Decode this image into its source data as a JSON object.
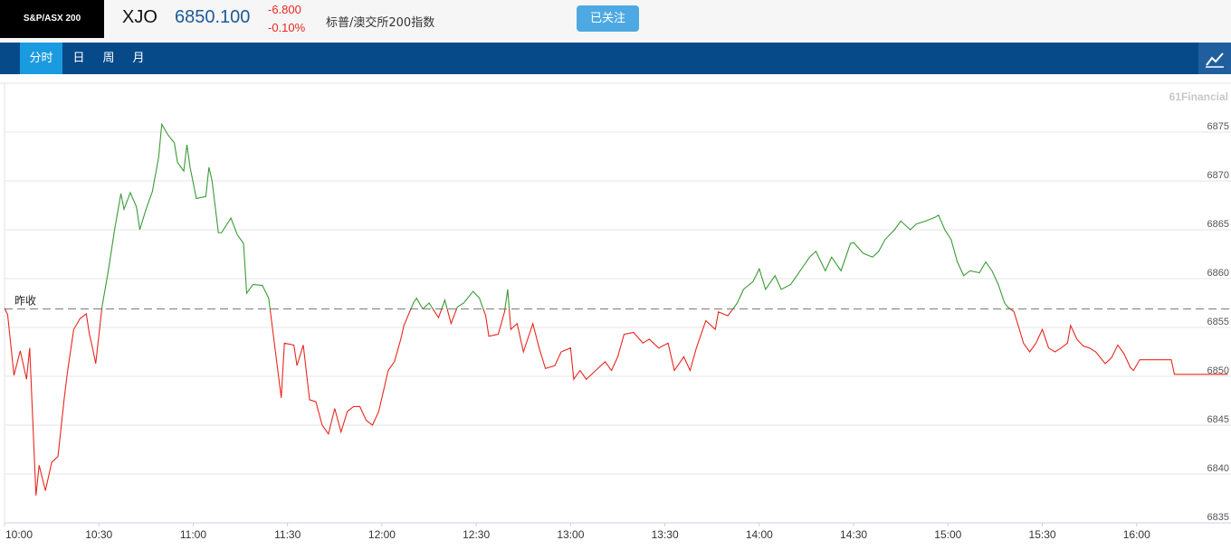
{
  "header": {
    "logo": "S&P/ASX 200",
    "symbol": "XJO",
    "price": "6850.100",
    "change": "-6.800",
    "change_percent": "-0.10%",
    "name": "标普/澳交所200指数",
    "button": "已关注"
  },
  "tabs": [
    "分时",
    "日",
    "周",
    "月"
  ],
  "active_tab": 0,
  "chart_data": {
    "type": "line",
    "watermark": "61Financial",
    "reference_line": {
      "label": "昨收",
      "value": 6856.9,
      "color": "#8c8c8c"
    },
    "color_above": "#3b9a36",
    "color_below": "#e8271f",
    "x": [
      "10:00",
      "10:01",
      "10:03",
      "10:05",
      "10:07",
      "10:08",
      "10:10",
      "10:11",
      "10:13",
      "10:15",
      "10:17",
      "10:19",
      "10:20",
      "10:22",
      "10:24",
      "10:26",
      "10:27",
      "10:28",
      "10:29",
      "10:31",
      "10:33",
      "10:35",
      "10:37",
      "10:38",
      "10:40",
      "10:42",
      "10:43",
      "10:45",
      "10:47",
      "10:49",
      "10:50",
      "10:52",
      "10:54",
      "10:55",
      "10:57",
      "10:58",
      "10:59",
      "11:01",
      "11:04",
      "11:05",
      "11:06",
      "11:08",
      "11:09",
      "11:12",
      "11:14",
      "11:16",
      "11:17",
      "11:19",
      "11:22",
      "11:24",
      "11:26",
      "11:28",
      "11:29",
      "11:32",
      "11:33",
      "11:35",
      "11:37",
      "11:39",
      "11:41",
      "11:43",
      "11:45",
      "11:47",
      "11:49",
      "11:51",
      "11:53",
      "11:55",
      "11:57",
      "11:59",
      "12:02",
      "12:04",
      "12:06",
      "12:07",
      "12:10",
      "12:11",
      "12:13",
      "12:15",
      "12:18",
      "12:20",
      "12:22",
      "12:24",
      "12:26",
      "12:29",
      "12:31",
      "12:33",
      "12:34",
      "12:37",
      "12:39",
      "12:40",
      "12:41",
      "12:43",
      "12:45",
      "12:48",
      "12:50",
      "12:52",
      "12:55",
      "12:57",
      "13:00",
      "13:01",
      "13:03",
      "13:05",
      "13:08",
      "13:11",
      "13:13",
      "13:15",
      "13:17",
      "13:20",
      "13:23",
      "13:25",
      "13:28",
      "13:31",
      "13:33",
      "13:36",
      "13:38",
      "13:40",
      "13:43",
      "13:46",
      "13:47",
      "13:50",
      "13:53",
      "13:55",
      "13:58",
      "14:00",
      "14:02",
      "14:05",
      "14:07",
      "14:10",
      "14:13",
      "14:16",
      "14:18",
      "14:21",
      "14:23",
      "14:26",
      "14:29",
      "14:30",
      "14:33",
      "14:36",
      "14:38",
      "14:40",
      "14:43",
      "14:45",
      "14:48",
      "14:50",
      "14:53",
      "14:56",
      "14:57",
      "14:59",
      "15:01",
      "15:03",
      "15:05",
      "15:07",
      "15:10",
      "15:12",
      "15:14",
      "15:16",
      "15:18",
      "15:19",
      "15:21",
      "15:23",
      "15:24",
      "15:26",
      "15:28",
      "15:30",
      "15:32",
      "15:34",
      "15:36",
      "15:38",
      "15:39",
      "15:41",
      "15:43",
      "15:45",
      "15:47",
      "15:50",
      "15:52",
      "15:54",
      "15:56",
      "15:58",
      "15:59",
      "16:01",
      "16:11",
      "16:12",
      "16:29"
    ],
    "values": [
      6857.0,
      6856.3,
      6850.1,
      6852.6,
      6849.7,
      6852.9,
      6837.8,
      6840.9,
      6838.3,
      6841.2,
      6841.8,
      6847.8,
      6850.4,
      6854.8,
      6855.9,
      6856.4,
      6854.3,
      6852.9,
      6851.3,
      6857.1,
      6860.8,
      6865.0,
      6868.7,
      6867.1,
      6868.8,
      6867.3,
      6865.0,
      6867.1,
      6868.9,
      6872.4,
      6875.8,
      6874.7,
      6873.9,
      6871.9,
      6871.0,
      6873.7,
      6871.4,
      6868.2,
      6868.4,
      6871.4,
      6870.0,
      6864.7,
      6864.7,
      6866.2,
      6864.5,
      6863.6,
      6858.5,
      6859.4,
      6859.3,
      6858.0,
      6852.9,
      6847.8,
      6853.4,
      6853.2,
      6851.1,
      6853.2,
      6847.6,
      6847.4,
      6845.0,
      6844.1,
      6846.7,
      6844.3,
      6846.4,
      6846.9,
      6846.9,
      6845.5,
      6845.0,
      6846.4,
      6850.6,
      6851.5,
      6853.8,
      6855.2,
      6857.5,
      6858.0,
      6856.9,
      6857.5,
      6856.0,
      6857.8,
      6855.4,
      6857.1,
      6857.5,
      6858.7,
      6858.0,
      6856.2,
      6854.1,
      6854.3,
      6856.6,
      6858.9,
      6854.8,
      6855.4,
      6852.5,
      6855.4,
      6852.9,
      6850.8,
      6851.1,
      6852.5,
      6852.9,
      6849.7,
      6850.6,
      6849.7,
      6850.6,
      6851.5,
      6850.6,
      6852.0,
      6854.3,
      6854.5,
      6853.4,
      6853.8,
      6852.9,
      6853.4,
      6850.6,
      6852.0,
      6850.6,
      6852.9,
      6855.7,
      6854.8,
      6856.6,
      6856.2,
      6857.5,
      6858.9,
      6859.7,
      6861.0,
      6858.9,
      6860.3,
      6858.9,
      6859.4,
      6860.8,
      6862.2,
      6862.8,
      6860.8,
      6862.2,
      6860.8,
      6863.6,
      6863.7,
      6862.6,
      6862.2,
      6862.8,
      6864.0,
      6865.0,
      6865.9,
      6865.0,
      6865.6,
      6865.9,
      6866.3,
      6866.5,
      6865.0,
      6864.0,
      6861.7,
      6860.3,
      6860.8,
      6860.6,
      6861.7,
      6860.8,
      6859.4,
      6857.5,
      6857.1,
      6856.6,
      6854.5,
      6853.4,
      6852.5,
      6853.4,
      6854.8,
      6852.9,
      6852.5,
      6852.9,
      6853.4,
      6855.2,
      6853.8,
      6853.1,
      6852.9,
      6852.5,
      6851.3,
      6851.9,
      6853.2,
      6852.3,
      6850.9,
      6850.6,
      6851.7,
      6851.7,
      6850.2,
      6850.2
    ],
    "xlim": [
      "10:00",
      "16:30"
    ],
    "xticks": [
      "10:00",
      "10:30",
      "11:00",
      "11:30",
      "12:00",
      "12:30",
      "13:00",
      "13:30",
      "14:00",
      "14:30",
      "15:00",
      "15:30",
      "16:00"
    ],
    "ylim": [
      6835,
      6880
    ],
    "yticks": [
      6835,
      6840,
      6845,
      6850,
      6855,
      6860,
      6865,
      6870,
      6875
    ],
    "grid": true
  }
}
